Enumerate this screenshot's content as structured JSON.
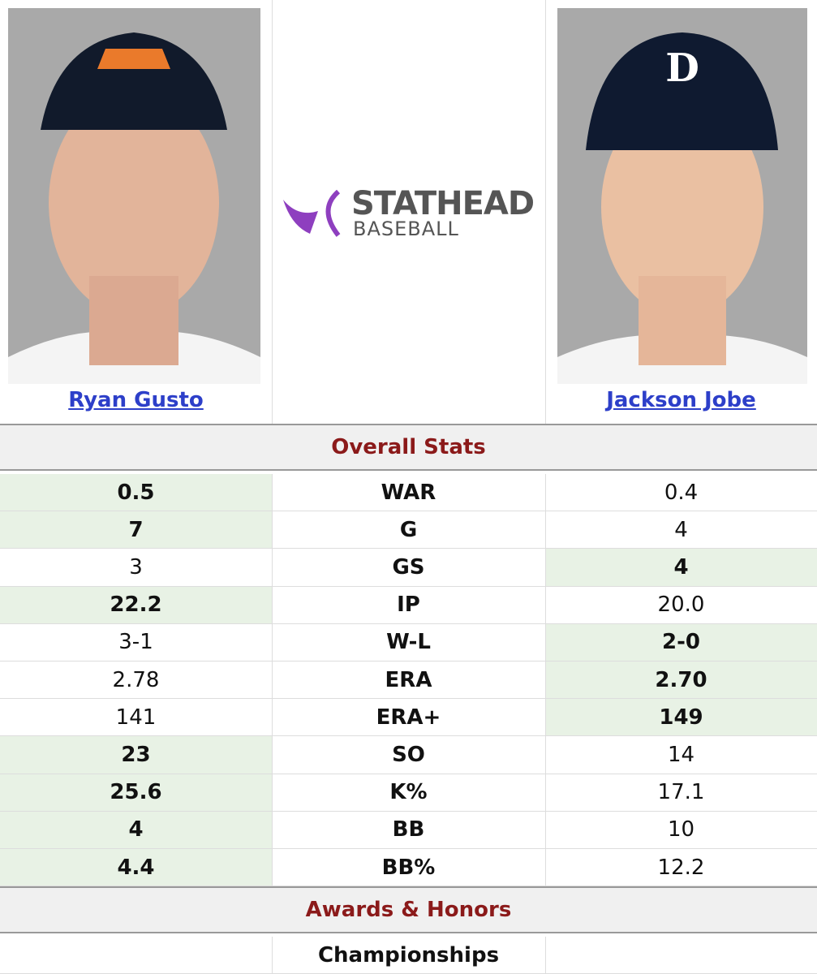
{
  "players": [
    {
      "name": "Ryan Gusto"
    },
    {
      "name": "Jackson Jobe"
    }
  ],
  "logo": {
    "word": "STATHEAD",
    "sub": "BASEBALL"
  },
  "sections": [
    {
      "title": "Overall Stats",
      "rows": [
        {
          "stat": "WAR",
          "left": "0.5",
          "right": "0.4",
          "leader": "left"
        },
        {
          "stat": "G",
          "left": "7",
          "right": "4",
          "leader": "left"
        },
        {
          "stat": "GS",
          "left": "3",
          "right": "4",
          "leader": "right"
        },
        {
          "stat": "IP",
          "left": "22.2",
          "right": "20.0",
          "leader": "left"
        },
        {
          "stat": "W-L",
          "left": "3-1",
          "right": "2-0",
          "leader": "right"
        },
        {
          "stat": "ERA",
          "left": "2.78",
          "right": "2.70",
          "leader": "right"
        },
        {
          "stat": "ERA+",
          "left": "141",
          "right": "149",
          "leader": "right"
        },
        {
          "stat": "SO",
          "left": "23",
          "right": "14",
          "leader": "left"
        },
        {
          "stat": "K%",
          "left": "25.6",
          "right": "17.1",
          "leader": "left"
        },
        {
          "stat": "BB",
          "left": "4",
          "right": "10",
          "leader": "left"
        },
        {
          "stat": "BB%",
          "left": "4.4",
          "right": "12.2",
          "leader": "left"
        }
      ]
    },
    {
      "title": "Awards & Honors",
      "rows": [
        {
          "stat": "Championships"
        }
      ]
    }
  ]
}
